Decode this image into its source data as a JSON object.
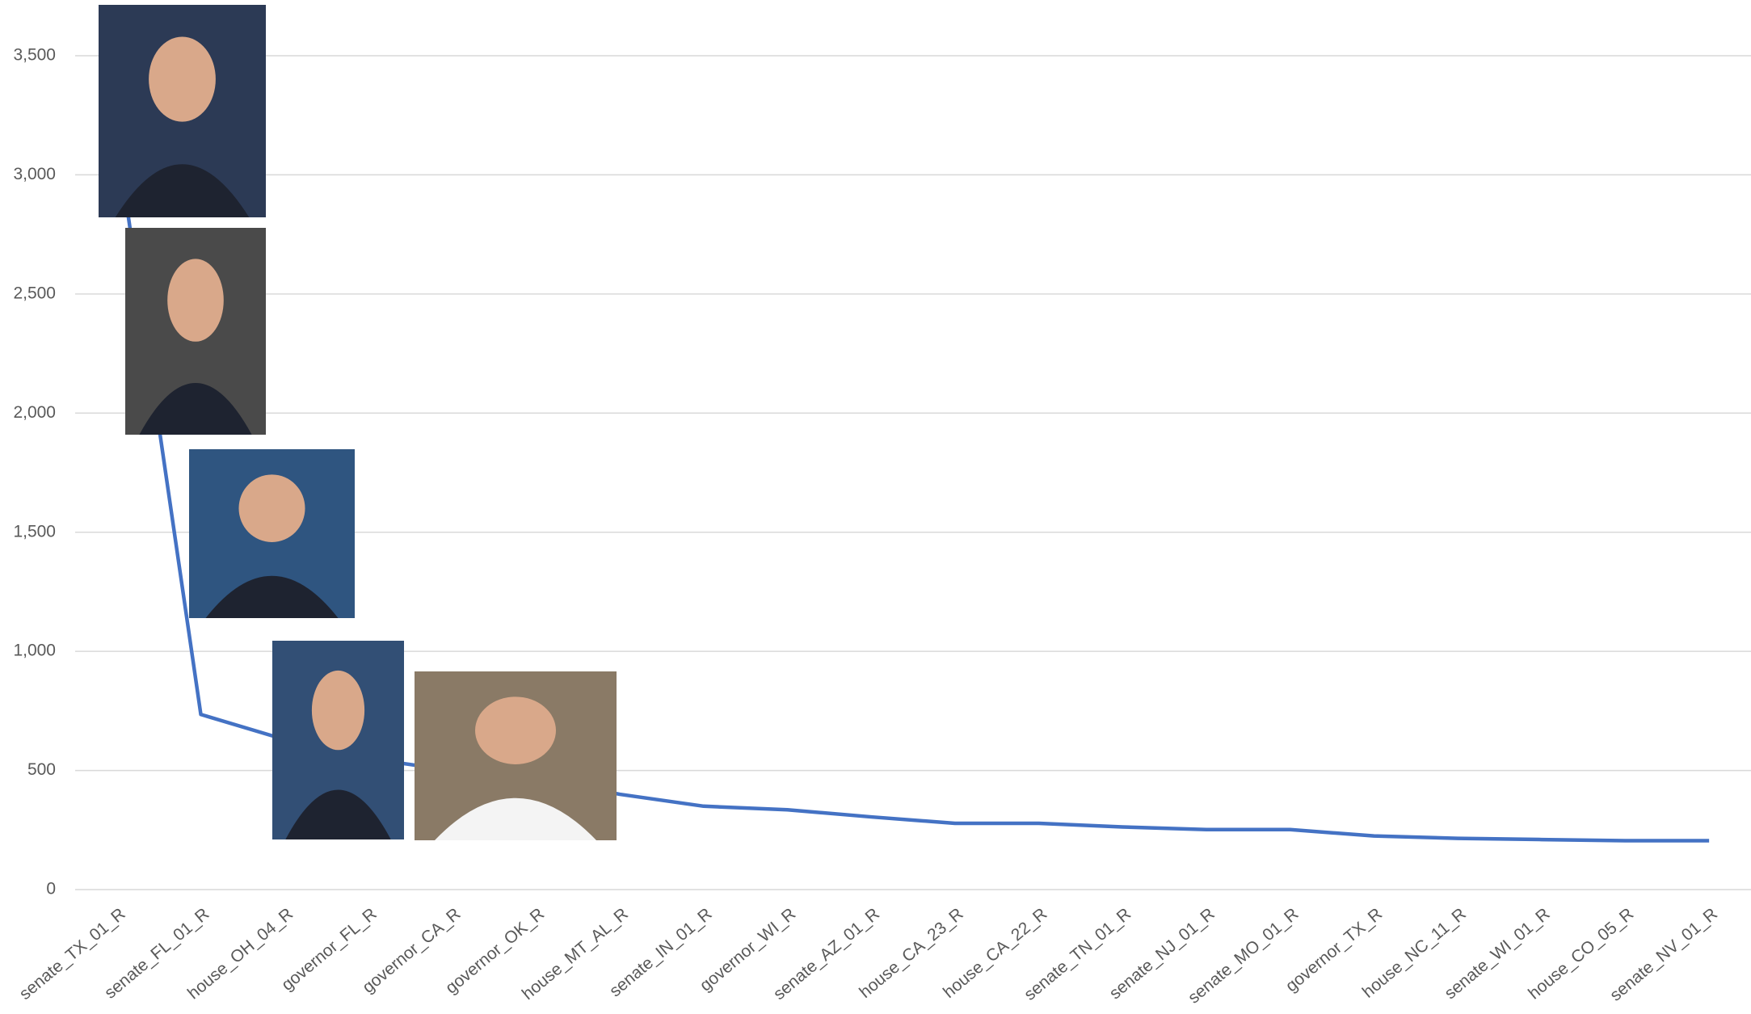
{
  "chart_data": {
    "type": "line",
    "categories": [
      "senate_TX_01_R",
      "senate_FL_01_R",
      "house_OH_04_R",
      "governor_FL_R",
      "governor_CA_R",
      "governor_OK_R",
      "house_MT_AL_R",
      "senate_IN_01_R",
      "governor_WI_R",
      "senate_AZ_01_R",
      "house_CA_23_R",
      "house_CA_22_R",
      "senate_TN_01_R",
      "senate_NJ_01_R",
      "senate_MO_01_R",
      "governor_TX_R",
      "house_NC_11_R",
      "senate_WI_01_R",
      "house_CO_05_R",
      "senate_NV_01_R"
    ],
    "series": [
      {
        "color": "#4472c4",
        "values": [
          3150,
          735,
          630,
          550,
          500,
          470,
          400,
          350,
          335,
          305,
          278,
          278,
          263,
          252,
          252,
          225,
          215,
          210,
          205,
          205
        ]
      }
    ],
    "ylim": [
      0,
      3500
    ],
    "yticks": [
      0,
      500,
      {
        "value": 1000,
        "label": "1,000"
      },
      {
        "value": 1500,
        "label": "1,500"
      },
      {
        "value": 2000,
        "label": "2,000"
      },
      {
        "value": 2500,
        "label": "2,500"
      },
      {
        "value": 3000,
        "label": "3,000"
      },
      {
        "value": 3500,
        "label": "3,500"
      }
    ],
    "grid": true
  }
}
